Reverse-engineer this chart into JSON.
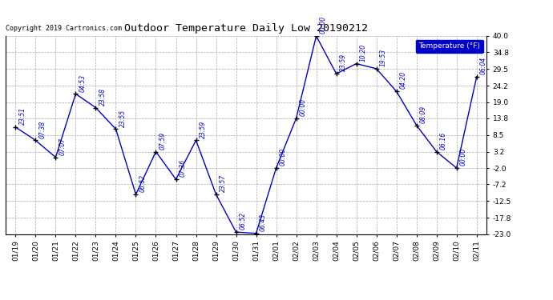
{
  "title": "Outdoor Temperature Daily Low 20190212",
  "copyright": "Copyright 2019 Cartronics.com",
  "legend_label": "Temperature (°F)",
  "x_labels": [
    "01/19",
    "01/20",
    "01/21",
    "01/22",
    "01/23",
    "01/24",
    "01/25",
    "01/26",
    "01/27",
    "01/28",
    "01/29",
    "01/30",
    "01/31",
    "02/01",
    "02/02",
    "02/03",
    "02/04",
    "02/05",
    "02/06",
    "02/07",
    "02/08",
    "02/09",
    "02/10",
    "02/11"
  ],
  "y_values": [
    11.0,
    6.8,
    1.4,
    21.6,
    17.2,
    10.4,
    -10.4,
    3.2,
    -5.6,
    6.8,
    -10.4,
    -22.4,
    -22.8,
    -2.0,
    13.8,
    40.0,
    28.0,
    31.2,
    29.6,
    22.4,
    11.6,
    3.2,
    -2.0,
    27.0
  ],
  "time_labels": [
    "23:51",
    "07:38",
    "07:07",
    "04:53",
    "23:58",
    "23:55",
    "06:52",
    "07:59",
    "07:36",
    "23:59",
    "23:57",
    "06:52",
    "06:43",
    "00:00",
    "00:00",
    "00:00",
    "23:59",
    "10:20",
    "19:53",
    "04:20",
    "08:09",
    "06:16",
    "00:00",
    "06:04"
  ],
  "ylim": [
    -23.0,
    40.0
  ],
  "yticks": [
    40.0,
    34.8,
    29.5,
    24.2,
    19.0,
    13.8,
    8.5,
    3.2,
    -2.0,
    -7.2,
    -12.5,
    -17.8,
    -23.0
  ],
  "line_color": "#0000CC",
  "marker_color": "#000000",
  "bg_color": "#ffffff",
  "plot_bg_color": "#ffffff",
  "grid_color": "#aaaaaa",
  "title_color": "#000000",
  "legend_bg": "#0000CC",
  "legend_fg": "#ffffff"
}
